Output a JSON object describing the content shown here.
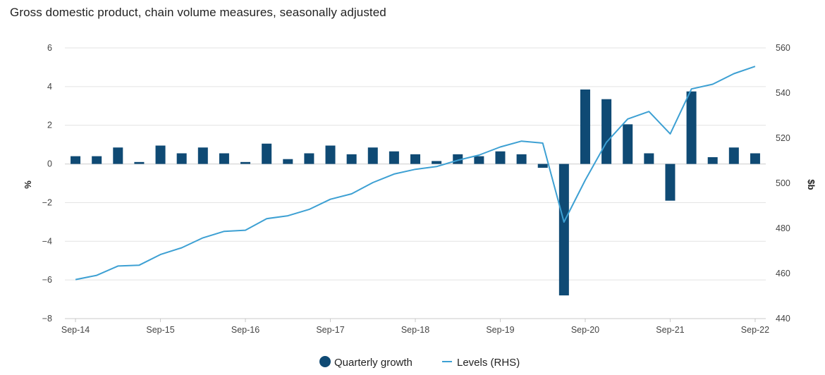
{
  "chart_data": {
    "type": "bar",
    "title": "Gross domestic product, chain volume measures, seasonally adjusted",
    "categories": [
      "Sep-14",
      "Dec-14",
      "Mar-15",
      "Jun-15",
      "Sep-15",
      "Dec-15",
      "Mar-16",
      "Jun-16",
      "Sep-16",
      "Dec-16",
      "Mar-17",
      "Jun-17",
      "Sep-17",
      "Dec-17",
      "Mar-18",
      "Jun-18",
      "Sep-18",
      "Dec-18",
      "Mar-19",
      "Jun-19",
      "Sep-19",
      "Dec-19",
      "Mar-20",
      "Jun-20",
      "Sep-20",
      "Dec-20",
      "Mar-21",
      "Jun-21",
      "Sep-21",
      "Dec-21",
      "Mar-22",
      "Jun-22",
      "Sep-22"
    ],
    "x_tick_labels": [
      "Sep-14",
      "Sep-15",
      "Sep-16",
      "Sep-17",
      "Sep-18",
      "Sep-19",
      "Sep-20",
      "Sep-21",
      "Sep-22"
    ],
    "series": [
      {
        "name": "Quarterly growth",
        "type": "bar",
        "axis": "left",
        "color": "#0f4a74",
        "values": [
          0.4,
          0.4,
          0.85,
          0.1,
          0.95,
          0.55,
          0.85,
          0.55,
          0.1,
          1.05,
          0.25,
          0.55,
          0.95,
          0.5,
          0.85,
          0.65,
          0.5,
          0.15,
          0.5,
          0.4,
          0.65,
          0.5,
          -0.2,
          -6.8,
          3.85,
          3.35,
          2.05,
          0.55,
          -1.9,
          3.75,
          0.35,
          0.85,
          0.55
        ]
      },
      {
        "name": "Levels (RHS)",
        "type": "line",
        "axis": "right",
        "color": "#3da0d3",
        "values": [
          457.3,
          459.2,
          463.3,
          463.7,
          468.4,
          471.4,
          475.8,
          478.7,
          479.2,
          484.3,
          485.6,
          488.4,
          492.9,
          495.3,
          500.3,
          504.1,
          506.2,
          507.4,
          510.2,
          512.5,
          516.1,
          518.7,
          517.8,
          482.8,
          501.4,
          518.2,
          528.5,
          531.8,
          521.9,
          541.8,
          543.9,
          548.6,
          551.8
        ]
      }
    ],
    "ylabel": "%",
    "ylabel_right": "$b",
    "ylim": [
      -8,
      6
    ],
    "yticks": [
      "6",
      "4",
      "2",
      "0",
      "−2",
      "−4",
      "−6",
      "−8"
    ],
    "ylim_right": [
      440,
      560
    ],
    "yticks_right": [
      "560",
      "540",
      "520",
      "500",
      "480",
      "460",
      "440"
    ],
    "grid": true,
    "legend_position": "bottom-center"
  }
}
